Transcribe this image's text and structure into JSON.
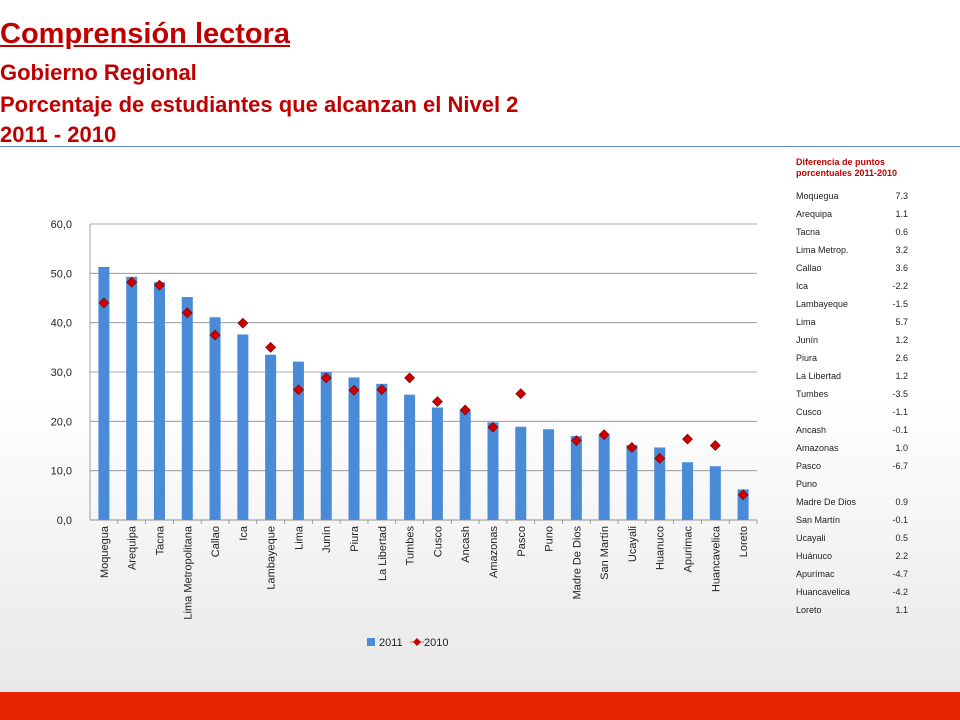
{
  "header": {
    "title": "Comprensión lectora",
    "subtitle": "Gobierno Regional",
    "subtitle2": "Porcentaje de estudiantes que alcanzan el Nivel 2",
    "years": "2011 - 2010"
  },
  "colors": {
    "title": "#c00000",
    "bar_2011": "#4a8bd8",
    "marker_2010": "#cc0000",
    "footer": "#e52400",
    "rule": "#5b8bc2"
  },
  "chart_data": {
    "type": "bar",
    "categories": [
      "Moquegua",
      "Arequipa",
      "Tacna",
      "Lima Metropolitana",
      "Callao",
      "Ica",
      "Lambayeque",
      "Lima",
      "Junín",
      "Piura",
      "La Libertad",
      "Tumbes",
      "Cusco",
      "Ancash",
      "Amazonas",
      "Pasco",
      "Puno",
      "Madre De Dios",
      "San Martín",
      "Ucayali",
      "Huanuco",
      "Apurimac",
      "Huancavelica",
      "Loreto"
    ],
    "series": [
      {
        "name": "2011",
        "kind": "bar",
        "values": [
          51.3,
          49.3,
          48.2,
          45.2,
          41.1,
          37.6,
          33.5,
          32.1,
          30.0,
          28.9,
          27.6,
          25.4,
          22.8,
          22.2,
          19.8,
          18.9,
          18.4,
          17.0,
          17.2,
          15.2,
          14.7,
          11.7,
          10.9,
          6.2
        ]
      },
      {
        "name": "2010",
        "kind": "marker",
        "values": [
          44.0,
          48.2,
          47.6,
          42.0,
          37.5,
          39.9,
          35.0,
          26.4,
          28.8,
          26.3,
          26.4,
          28.8,
          24.0,
          22.3,
          18.8,
          25.6,
          null,
          16.1,
          17.3,
          14.7,
          12.5,
          16.4,
          15.1,
          5.1
        ]
      }
    ],
    "ylim": [
      0,
      60
    ],
    "yticks": [
      "0,0",
      "10,0",
      "20,0",
      "30,0",
      "40,0",
      "50,0",
      "60,0"
    ],
    "ytick_values": [
      0,
      10,
      20,
      30,
      40,
      50,
      60
    ],
    "grid": true,
    "legend_position": "bottom"
  },
  "side_table": {
    "title": "Diferencia de puntos porcentuales 2011-2010",
    "rows": [
      {
        "label": "Moquegua",
        "value": "7.3"
      },
      {
        "label": "Arequipa",
        "value": "1.1"
      },
      {
        "label": "Tacna",
        "value": "0.6"
      },
      {
        "label": "Lima Metrop.",
        "value": "3.2"
      },
      {
        "label": "Callao",
        "value": "3.6"
      },
      {
        "label": "Ica",
        "value": "-2.2"
      },
      {
        "label": "Lambayeque",
        "value": "-1.5"
      },
      {
        "label": "Lima",
        "value": "5.7"
      },
      {
        "label": "Junín",
        "value": "1.2"
      },
      {
        "label": "Piura",
        "value": "2.6"
      },
      {
        "label": "La Libertad",
        "value": "1.2"
      },
      {
        "label": "Tumbes",
        "value": "-3.5"
      },
      {
        "label": "Cusco",
        "value": "-1.1"
      },
      {
        "label": "Ancash",
        "value": "-0.1"
      },
      {
        "label": "Amazonas",
        "value": "1.0"
      },
      {
        "label": "Pasco",
        "value": "-6.7"
      },
      {
        "label": "Puno",
        "value": ""
      },
      {
        "label": "Madre De Dios",
        "value": "0.9"
      },
      {
        "label": "San Martín",
        "value": "-0.1"
      },
      {
        "label": "Ucayali",
        "value": "0.5"
      },
      {
        "label": "Huánuco",
        "value": "2.2"
      },
      {
        "label": "Apurímac",
        "value": "-4.7"
      },
      {
        "label": "Huancavelica",
        "value": "-4.2"
      },
      {
        "label": "Loreto",
        "value": "1.1"
      }
    ]
  }
}
